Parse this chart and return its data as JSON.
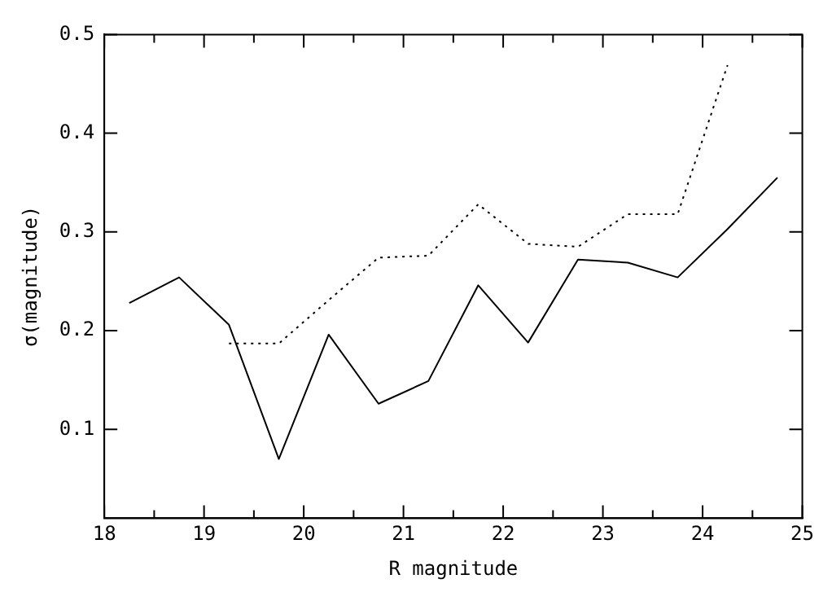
{
  "chart_data": {
    "type": "line",
    "xlabel": "R magnitude",
    "ylabel": "σ(magnitude)",
    "xlim": [
      18,
      25
    ],
    "ylim": [
      0.01,
      0.5
    ],
    "xticks": [
      18,
      {
        "value": 18.5,
        "label": null
      },
      19,
      {
        "value": 19.5,
        "label": null
      },
      20,
      {
        "value": 20.5,
        "label": null
      },
      21,
      {
        "value": 21.5,
        "label": null
      },
      22,
      {
        "value": 22.5,
        "label": null
      },
      23,
      {
        "value": 23.5,
        "label": null
      },
      24,
      {
        "value": 24.5,
        "label": null
      },
      25
    ],
    "yticks": [
      0.1,
      0.2,
      0.3,
      0.4,
      0.5
    ],
    "grid": false,
    "legend": false,
    "marker": "none",
    "series": [
      {
        "color": "#000000",
        "line_style": "solid",
        "x": [
          18.25,
          18.75,
          19.25,
          19.75,
          20.25,
          20.75,
          21.25,
          21.75,
          22.25,
          22.75,
          23.25,
          23.75,
          24.25,
          24.75
        ],
        "values": [
          0.228,
          0.254,
          0.206,
          0.07,
          0.196,
          0.126,
          0.149,
          0.246,
          0.188,
          0.272,
          0.269,
          0.254,
          0.303,
          0.355
        ]
      },
      {
        "color": "#000000",
        "line_style": "dotted",
        "x": [
          19.25,
          19.75,
          20.25,
          20.75,
          21.25,
          21.75,
          22.25,
          22.75,
          23.25,
          23.75,
          24.25
        ],
        "values": [
          0.187,
          0.187,
          0.231,
          0.274,
          0.276,
          0.328,
          0.288,
          0.285,
          0.318,
          0.318,
          0.469
        ]
      }
    ]
  }
}
